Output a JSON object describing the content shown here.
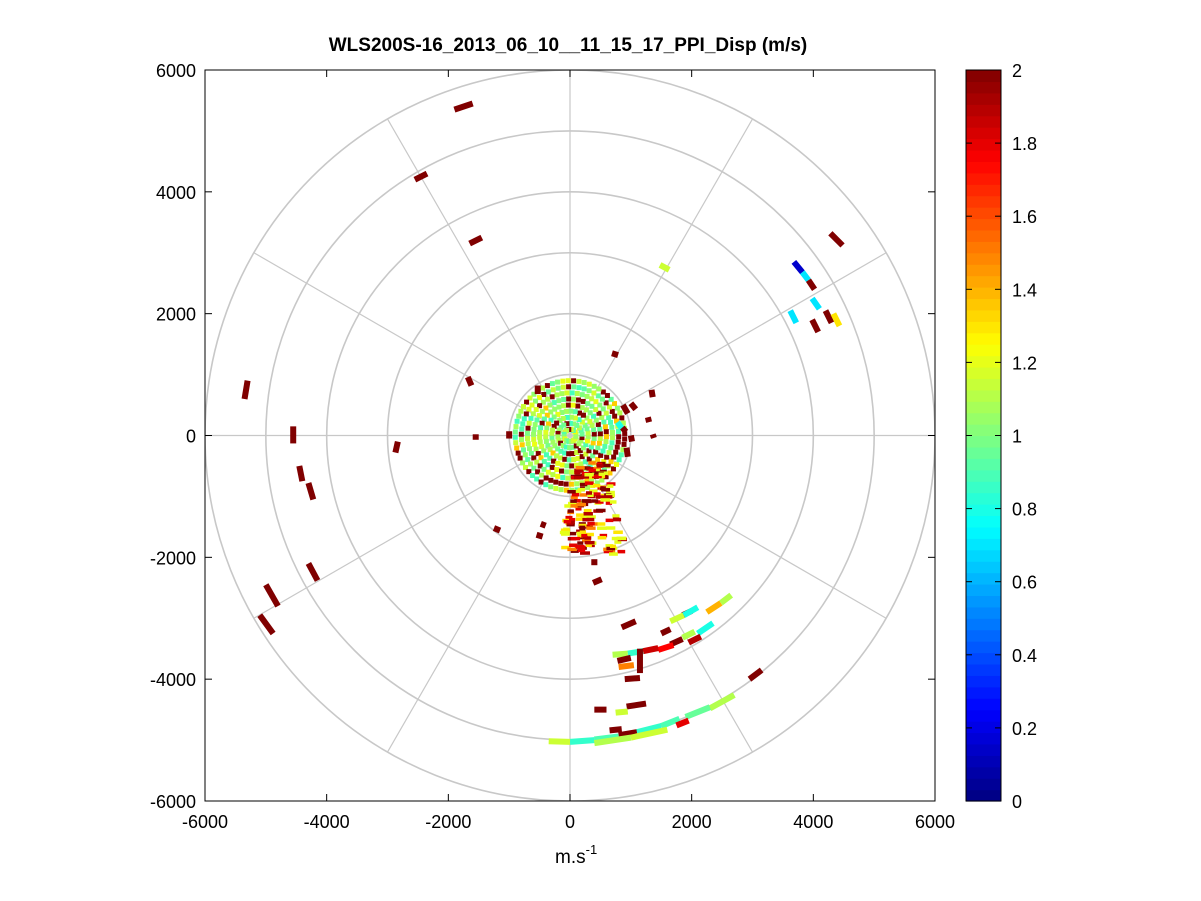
{
  "window": {
    "background": "#ffffff"
  },
  "chart_data": {
    "type": "polar_ppi_scatter",
    "title": "WLS200S-16_2013_06_10__11_15_17_PPI_Disp (m/s)",
    "xlabel_base": "m.s",
    "xlabel_sup": "-1",
    "ylabel": "",
    "xlim": [
      -6000,
      6000
    ],
    "ylim": [
      -6000,
      6000
    ],
    "xticks": [
      -6000,
      -4000,
      -2000,
      0,
      2000,
      4000,
      6000
    ],
    "yticks": [
      6000,
      4000,
      2000,
      0,
      -2000,
      -4000,
      -6000
    ],
    "polar_grid": {
      "ring_radii": [
        1000,
        2000,
        3000,
        4000,
        5000,
        6000
      ],
      "spoke_angles_deg": [
        0,
        30,
        60,
        90,
        120,
        150,
        180,
        210,
        240,
        270,
        300,
        330
      ],
      "color": "#c8c8c8"
    },
    "colorbar": {
      "min": 0,
      "max": 2,
      "ticks": [
        0,
        0.2,
        0.4,
        0.6,
        0.8,
        1,
        1.2,
        1.4,
        1.6,
        1.8,
        2
      ],
      "tick_labels": [
        "0",
        "0.2",
        "0.4",
        "0.6",
        "0.8",
        "1",
        "1.2",
        "1.4",
        "1.6",
        "1.8",
        "2"
      ],
      "colormap": "jet",
      "levels": 64
    },
    "data_segments": [
      {
        "x0": -1900,
        "y0": 5350,
        "x1": -1600,
        "y1": 5450,
        "v": 2.0
      },
      {
        "x0": -2550,
        "y0": 4200,
        "x1": -2350,
        "y1": 4300,
        "v": 2.0
      },
      {
        "x0": -1650,
        "y0": 3150,
        "x1": -1450,
        "y1": 3250,
        "v": 2.0
      },
      {
        "x0": 1480,
        "y0": 2800,
        "x1": 1630,
        "y1": 2720,
        "v": 1.15
      },
      {
        "x0": 4280,
        "y0": 3320,
        "x1": 4480,
        "y1": 3120,
        "v": 2.0
      },
      {
        "x0": 3680,
        "y0": 2850,
        "x1": 3820,
        "y1": 2680,
        "v": 0.15
      },
      {
        "x0": 3820,
        "y0": 2680,
        "x1": 3920,
        "y1": 2550,
        "v": 0.7
      },
      {
        "x0": 3920,
        "y0": 2550,
        "x1": 4020,
        "y1": 2400,
        "v": 2.0
      },
      {
        "x0": 3980,
        "y0": 2250,
        "x1": 4100,
        "y1": 2080,
        "v": 0.7
      },
      {
        "x0": 3620,
        "y0": 2050,
        "x1": 3720,
        "y1": 1850,
        "v": 0.7
      },
      {
        "x0": 3980,
        "y0": 1900,
        "x1": 4080,
        "y1": 1700,
        "v": 2.0
      },
      {
        "x0": 4200,
        "y0": 2050,
        "x1": 4300,
        "y1": 1850,
        "v": 2.0
      },
      {
        "x0": 4330,
        "y0": 2000,
        "x1": 4430,
        "y1": 1800,
        "v": 1.3
      },
      {
        "x0": -5300,
        "y0": 900,
        "x1": -5350,
        "y1": 600,
        "v": 2.0
      },
      {
        "x0": -4550,
        "y0": 150,
        "x1": -4550,
        "y1": -130,
        "v": 2.0
      },
      {
        "x0": -2830,
        "y0": -100,
        "x1": -2870,
        "y1": -280,
        "v": 2.0
      },
      {
        "x0": -4450,
        "y0": -500,
        "x1": -4400,
        "y1": -750,
        "v": 2.0
      },
      {
        "x0": -4300,
        "y0": -780,
        "x1": -4220,
        "y1": -1050,
        "v": 2.0
      },
      {
        "x0": -4300,
        "y0": -2100,
        "x1": -4150,
        "y1": -2380,
        "v": 2.0
      },
      {
        "x0": -5000,
        "y0": -2450,
        "x1": -4800,
        "y1": -2800,
        "v": 2.0
      },
      {
        "x0": -5100,
        "y0": -2950,
        "x1": -4880,
        "y1": -3250,
        "v": 2.0
      },
      {
        "x0": -530,
        "y0": 820,
        "x1": -530,
        "y1": 680,
        "v": 2.0
      },
      {
        "x0": 690,
        "y0": 1350,
        "x1": 790,
        "y1": 1320,
        "v": 2.0
      },
      {
        "x0": 1340,
        "y0": 750,
        "x1": 1360,
        "y1": 630,
        "v": 2.0
      },
      {
        "x0": -1680,
        "y0": 960,
        "x1": -1620,
        "y1": 820,
        "v": 2.0
      },
      {
        "x0": -1000,
        "y0": 70,
        "x1": -1000,
        "y1": -50,
        "v": 2.0
      },
      {
        "x0": -1550,
        "y0": 20,
        "x1": -1550,
        "y1": -70,
        "v": 2.0
      },
      {
        "x0": 1360,
        "y0": 20,
        "x1": 1380,
        "y1": -40,
        "v": 2.0
      },
      {
        "x0": 1000,
        "y0": 530,
        "x1": 1080,
        "y1": 430,
        "v": 2.0
      },
      {
        "x0": 870,
        "y0": 500,
        "x1": 950,
        "y1": 360,
        "v": 2.0
      },
      {
        "x0": 780,
        "y0": 220,
        "x1": 850,
        "y1": 120,
        "v": 0.8
      },
      {
        "x0": 860,
        "y0": 130,
        "x1": 920,
        "y1": 60,
        "v": 2.0
      },
      {
        "x0": 1000,
        "y0": 0,
        "x1": 1020,
        "y1": -100,
        "v": 2.0
      },
      {
        "x0": 930,
        "y0": -200,
        "x1": 950,
        "y1": -350,
        "v": 2.0
      },
      {
        "x0": 1280,
        "y0": 300,
        "x1": 1300,
        "y1": 220,
        "v": 2.0
      },
      {
        "x0": -1250,
        "y0": -1520,
        "x1": -1150,
        "y1": -1560,
        "v": 2.0
      },
      {
        "x0": -480,
        "y0": -1450,
        "x1": -400,
        "y1": -1480,
        "v": 2.0
      },
      {
        "x0": -550,
        "y0": -1630,
        "x1": -450,
        "y1": -1660,
        "v": 2.0
      },
      {
        "x0": 350,
        "y0": -2080,
        "x1": 450,
        "y1": -2080,
        "v": 2.0
      },
      {
        "x0": 380,
        "y0": -2420,
        "x1": 520,
        "y1": -2360,
        "v": 2.0
      },
      {
        "x0": 850,
        "y0": -3150,
        "x1": 1080,
        "y1": -3050,
        "v": 2.0
      },
      {
        "x0": 1500,
        "y0": -3250,
        "x1": 1650,
        "y1": -3180,
        "v": 2.0
      },
      {
        "x0": 1850,
        "y0": -2950,
        "x1": 2000,
        "y1": -2880,
        "v": 2.0
      },
      {
        "x0": 1650,
        "y0": -3050,
        "x1": 1870,
        "y1": -2950,
        "v": 1.15
      },
      {
        "x0": 1870,
        "y0": -2950,
        "x1": 2100,
        "y1": -2820,
        "v": 0.8
      },
      {
        "x0": 2250,
        "y0": -2900,
        "x1": 2480,
        "y1": -2750,
        "v": 1.4
      },
      {
        "x0": 2480,
        "y0": -2750,
        "x1": 2650,
        "y1": -2620,
        "v": 1.1
      },
      {
        "x0": 2100,
        "y0": -3250,
        "x1": 2350,
        "y1": -3080,
        "v": 0.8
      },
      {
        "x0": 1850,
        "y0": -3320,
        "x1": 2050,
        "y1": -3220,
        "v": 1.1
      },
      {
        "x0": 1950,
        "y0": -3400,
        "x1": 2150,
        "y1": -3300,
        "v": 1.9
      },
      {
        "x0": 1650,
        "y0": -3430,
        "x1": 1850,
        "y1": -3340,
        "v": 2.0
      },
      {
        "x0": 1450,
        "y0": -3520,
        "x1": 1700,
        "y1": -3440,
        "v": 1.75
      },
      {
        "x0": 1200,
        "y0": -3540,
        "x1": 1450,
        "y1": -3490,
        "v": 1.85
      },
      {
        "x0": 950,
        "y0": -3580,
        "x1": 1200,
        "y1": -3540,
        "v": 0.85
      },
      {
        "x0": 700,
        "y0": -3600,
        "x1": 950,
        "y1": -3580,
        "v": 1.1
      },
      {
        "x0": 780,
        "y0": -3700,
        "x1": 1000,
        "y1": -3650,
        "v": 2.0
      },
      {
        "x0": 800,
        "y0": -3800,
        "x1": 1050,
        "y1": -3770,
        "v": 1.5
      },
      {
        "x0": 1150,
        "y0": -3500,
        "x1": 1150,
        "y1": -3900,
        "v": 2.0
      },
      {
        "x0": 900,
        "y0": -4000,
        "x1": 1150,
        "y1": -3980,
        "v": 2.0
      },
      {
        "x0": 400,
        "y0": -4500,
        "x1": 600,
        "y1": -4500,
        "v": 2.0
      },
      {
        "x0": 930,
        "y0": -4450,
        "x1": 1250,
        "y1": -4400,
        "v": 2.0
      },
      {
        "x0": 750,
        "y0": -4550,
        "x1": 950,
        "y1": -4530,
        "v": 1.15
      },
      {
        "x0": 2950,
        "y0": -4000,
        "x1": 3150,
        "y1": -3850,
        "v": 2.0
      },
      {
        "x0": 2300,
        "y0": -4480,
        "x1": 2700,
        "y1": -4260,
        "v": 1.1
      },
      {
        "x0": 1900,
        "y0": -4620,
        "x1": 2300,
        "y1": -4460,
        "v": 0.95
      },
      {
        "x0": 1500,
        "y0": -4770,
        "x1": 1800,
        "y1": -4650,
        "v": 0.9
      },
      {
        "x0": 1750,
        "y0": -4760,
        "x1": 1950,
        "y1": -4680,
        "v": 1.8
      },
      {
        "x0": 1100,
        "y0": -4870,
        "x1": 1500,
        "y1": -4770,
        "v": 0.85
      },
      {
        "x0": 800,
        "y0": -4920,
        "x1": 1100,
        "y1": -4870,
        "v": 2.0
      },
      {
        "x0": 650,
        "y0": -4840,
        "x1": 850,
        "y1": -4820,
        "v": 2.0
      },
      {
        "x0": 400,
        "y0": -4990,
        "x1": 800,
        "y1": -4940,
        "v": 0.9
      },
      {
        "x0": 0,
        "y0": -5030,
        "x1": 400,
        "y1": -5000,
        "v": 0.85
      },
      {
        "x0": -350,
        "y0": -5020,
        "x1": 0,
        "y1": -5030,
        "v": 1.15
      },
      {
        "x0": 400,
        "y0": -5050,
        "x1": 1000,
        "y1": -4960,
        "v": 1.1
      },
      {
        "x0": 1000,
        "y0": -4960,
        "x1": 1600,
        "y1": -4830,
        "v": 1.15
      }
    ],
    "center_cluster": {
      "radius_m": 900,
      "base_value": 1.05,
      "red_value": 2.0
    },
    "south_plume": {
      "x_range": [
        -100,
        900
      ],
      "y_range": [
        -400,
        -1950
      ],
      "values": [
        2.0,
        1.9,
        1.5,
        1.3,
        1.2,
        1.8
      ]
    }
  }
}
